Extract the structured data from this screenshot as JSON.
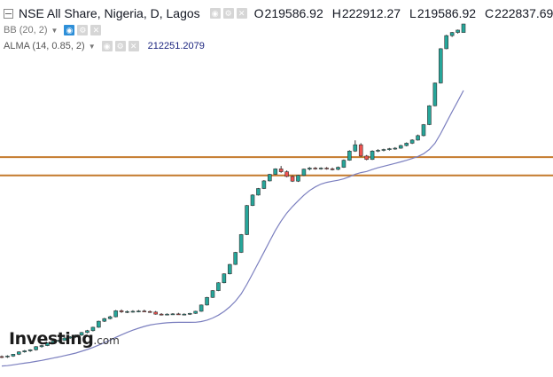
{
  "header": {
    "symbol_title": "NSE All Share, Nigeria, D, Lagos",
    "ohlc": [
      {
        "key": "O",
        "value": "219586.92"
      },
      {
        "key": "H",
        "value": "222912.27"
      },
      {
        "key": "L",
        "value": "219586.92"
      },
      {
        "key": "C",
        "value": "222837.69"
      }
    ]
  },
  "indicators": {
    "bb": {
      "label": "BB (20, 2)"
    },
    "alma": {
      "label": "ALMA (14, 0.85, 2)",
      "value": "212251.2079"
    }
  },
  "icons": {
    "collapse": "collapse-icon",
    "eye": "eye-icon",
    "settings": "gear-icon",
    "close": "close-icon"
  },
  "watermark": {
    "brand": "Investing",
    "suffix": ".com"
  },
  "colors": {
    "up": "#26a69a",
    "down": "#ef5350",
    "alma_line": "#7b7fbf",
    "horizontal_lines": "#c47a2c",
    "active_control": "#2e8fd8"
  },
  "chart_data": {
    "type": "candlestick",
    "title": "NSE All Share, Nigeria, D, Lagos",
    "ylim": [
      88000,
      232000
    ],
    "grid": false,
    "horizontal_levels": [
      172000,
      165000
    ],
    "candles": [
      [
        95800,
        96200,
        95200,
        95700
      ],
      [
        95700,
        96300,
        95300,
        96000
      ],
      [
        96000,
        96800,
        95700,
        96700
      ],
      [
        96700,
        97800,
        96400,
        97600
      ],
      [
        97600,
        98300,
        97300,
        98000
      ],
      [
        98000,
        98600,
        97600,
        98400
      ],
      [
        98400,
        99800,
        98100,
        99600
      ],
      [
        99600,
        100300,
        99200,
        100000
      ],
      [
        100000,
        101200,
        99800,
        101000
      ],
      [
        101000,
        102000,
        100700,
        101700
      ],
      [
        101700,
        102200,
        101300,
        102000
      ],
      [
        102000,
        103200,
        101800,
        102900
      ],
      [
        102900,
        103600,
        102600,
        103300
      ],
      [
        103300,
        104200,
        103000,
        104000
      ],
      [
        104000,
        105200,
        103700,
        105000
      ],
      [
        105000,
        106000,
        104700,
        105700
      ],
      [
        105700,
        107200,
        105400,
        107000
      ],
      [
        107000,
        109500,
        106800,
        109300
      ],
      [
        109300,
        110600,
        109000,
        110300
      ],
      [
        110300,
        111400,
        110000,
        111000
      ],
      [
        111000,
        113600,
        110800,
        113300
      ],
      [
        113300,
        113800,
        112500,
        112900
      ],
      [
        112900,
        113400,
        112400,
        113000
      ],
      [
        113000,
        113500,
        112600,
        113100
      ],
      [
        113100,
        113600,
        112700,
        113200
      ],
      [
        113200,
        113700,
        112800,
        113000
      ],
      [
        113000,
        113400,
        112500,
        112800
      ],
      [
        112800,
        113200,
        111800,
        112000
      ],
      [
        112000,
        112400,
        111500,
        111900
      ],
      [
        111900,
        112300,
        111600,
        112000
      ],
      [
        112000,
        112400,
        111700,
        112100
      ],
      [
        112100,
        112500,
        111800,
        111900
      ],
      [
        111900,
        112300,
        111600,
        112000
      ],
      [
        112000,
        112500,
        111700,
        112300
      ],
      [
        112300,
        113300,
        112100,
        113100
      ],
      [
        113100,
        115700,
        112900,
        115500
      ],
      [
        115500,
        118600,
        115300,
        118400
      ],
      [
        118400,
        121200,
        118200,
        121000
      ],
      [
        121000,
        124200,
        120800,
        124000
      ],
      [
        124000,
        127600,
        123800,
        127400
      ],
      [
        127400,
        131200,
        127200,
        131000
      ],
      [
        131000,
        135800,
        130800,
        135600
      ],
      [
        135600,
        142600,
        135400,
        142400
      ],
      [
        142400,
        153700,
        142200,
        153500
      ],
      [
        153500,
        157800,
        153300,
        157500
      ],
      [
        157500,
        160200,
        157300,
        160000
      ],
      [
        160000,
        163200,
        159800,
        162900
      ],
      [
        162900,
        165600,
        162700,
        165400
      ],
      [
        165400,
        167700,
        165200,
        167500
      ],
      [
        167500,
        168600,
        166000,
        166400
      ],
      [
        166400,
        166900,
        164300,
        164600
      ],
      [
        164600,
        165000,
        162500,
        162800
      ],
      [
        162800,
        165200,
        162500,
        165000
      ],
      [
        165000,
        167600,
        164800,
        167400
      ],
      [
        167400,
        168200,
        166900,
        167800
      ],
      [
        167800,
        168200,
        167200,
        167600
      ],
      [
        167600,
        168100,
        167200,
        167800
      ],
      [
        167800,
        168200,
        167200,
        167500
      ],
      [
        167500,
        168000,
        166900,
        167300
      ],
      [
        167300,
        168400,
        167000,
        168100
      ],
      [
        168100,
        171100,
        167900,
        170800
      ],
      [
        170800,
        174600,
        170600,
        174300
      ],
      [
        174300,
        178400,
        174000,
        176700
      ],
      [
        176700,
        177300,
        172100,
        172400
      ],
      [
        172400,
        172800,
        170800,
        171100
      ],
      [
        171100,
        174600,
        170900,
        174300
      ],
      [
        174300,
        175000,
        173900,
        174600
      ],
      [
        174600,
        175200,
        174200,
        174900
      ],
      [
        174900,
        175500,
        174500,
        175200
      ],
      [
        175200,
        175800,
        174800,
        175400
      ],
      [
        175400,
        176700,
        175200,
        176400
      ],
      [
        176400,
        177600,
        176100,
        177300
      ],
      [
        177300,
        178800,
        177000,
        178500
      ],
      [
        178500,
        180600,
        178300,
        180200
      ],
      [
        180200,
        184600,
        179900,
        184400
      ],
      [
        184400,
        191800,
        184200,
        191600
      ],
      [
        191600,
        200500,
        191400,
        200300
      ],
      [
        200300,
        213600,
        200100,
        213400
      ],
      [
        213400,
        218700,
        213200,
        218400
      ],
      [
        218400,
        219800,
        217900,
        219600
      ],
      [
        219600,
        220700,
        219200,
        220500
      ],
      [
        219586.92,
        222912.27,
        219586.92,
        222837.69
      ]
    ]
  }
}
